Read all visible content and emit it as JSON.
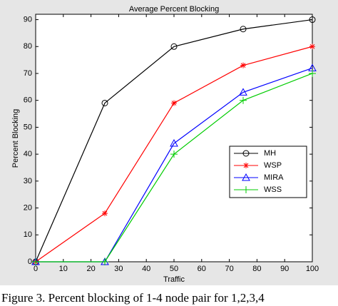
{
  "chart_data": {
    "type": "line",
    "title": "Average Percent Blocking",
    "x_label": "Traffic",
    "y_label": "Percent Blocking",
    "x": [
      0,
      25,
      50,
      75,
      100
    ],
    "series": [
      {
        "name": "MH",
        "color": "#000000",
        "marker": "o",
        "values": [
          0,
          59,
          80,
          86.5,
          90
        ]
      },
      {
        "name": "WSP",
        "color": "#ff0000",
        "marker": "*",
        "values": [
          0,
          18,
          59,
          73,
          80
        ]
      },
      {
        "name": "MIRA",
        "color": "#0000ff",
        "marker": "^",
        "values": [
          0,
          0,
          44,
          63,
          72
        ]
      },
      {
        "name": "WSS",
        "color": "#00cc00",
        "marker": "+",
        "values": [
          0,
          0,
          40,
          60,
          70
        ]
      }
    ],
    "xlim": [
      0,
      100
    ],
    "xticks": [
      0,
      10,
      20,
      30,
      40,
      50,
      60,
      70,
      80,
      90,
      100
    ],
    "ylim": [
      0,
      92
    ],
    "yticks": [
      0,
      10,
      20,
      30,
      40,
      50,
      60,
      70,
      80,
      90
    ],
    "legend": "right",
    "caption": "Figure 3.   Percent blocking of 1-4 node pair for 1,2,3,4"
  }
}
